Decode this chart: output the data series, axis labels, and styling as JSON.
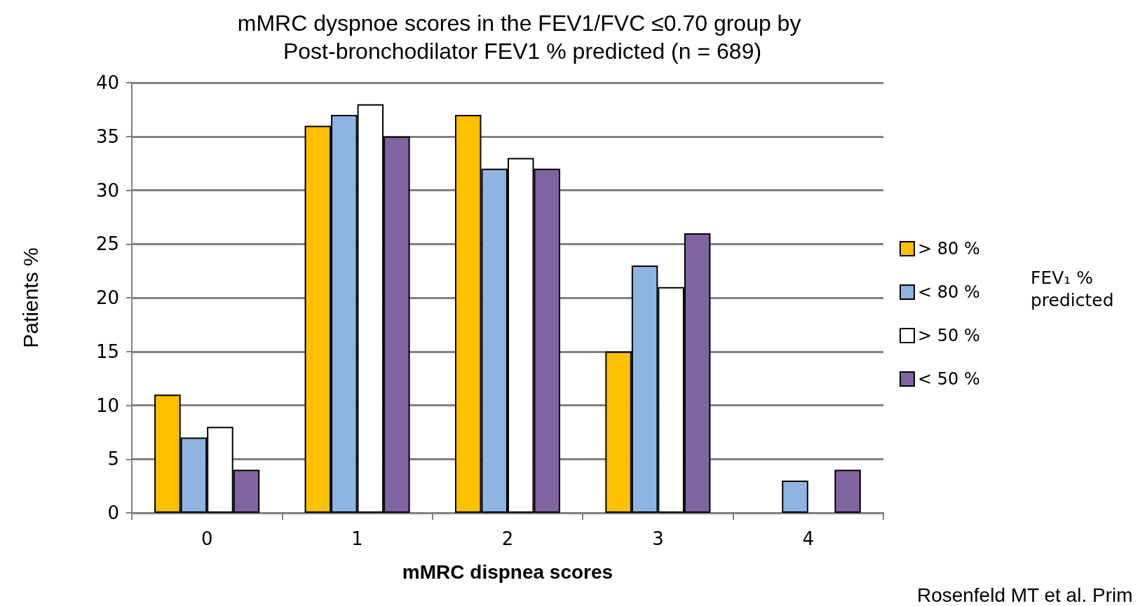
{
  "chart_data": {
    "type": "bar",
    "title": "mMRC dyspnoe scores in the FEV1/FVC ≤0.70 group by Post-bronchodilator FEV1 % predicted (n = 689)",
    "xlabel": "mMRC dispnea scores",
    "ylabel": "Patients %",
    "legend_title": "FEV₁ % predicted",
    "categories": [
      "0",
      "1",
      "2",
      "3",
      "4"
    ],
    "series": [
      {
        "name": "> 80 %",
        "color": "#ffc000",
        "values": [
          11,
          36,
          37,
          15,
          null
        ]
      },
      {
        "name": "< 80 %",
        "color": "#8eb4e3",
        "values": [
          7,
          37,
          32,
          23,
          3
        ]
      },
      {
        "name": "> 50 %",
        "color": "#ffffff",
        "values": [
          8,
          38,
          33,
          21,
          null
        ]
      },
      {
        "name": "< 50 %",
        "color": "#8064a2",
        "values": [
          4,
          35,
          32,
          26,
          4
        ]
      }
    ],
    "ylim": [
      0,
      40
    ],
    "yticks": [
      0,
      5,
      10,
      15,
      20,
      25,
      30,
      35,
      40
    ],
    "grid": "y",
    "legend": "right",
    "annotations": [
      "Rosenfeld MT et al. Prim"
    ]
  }
}
